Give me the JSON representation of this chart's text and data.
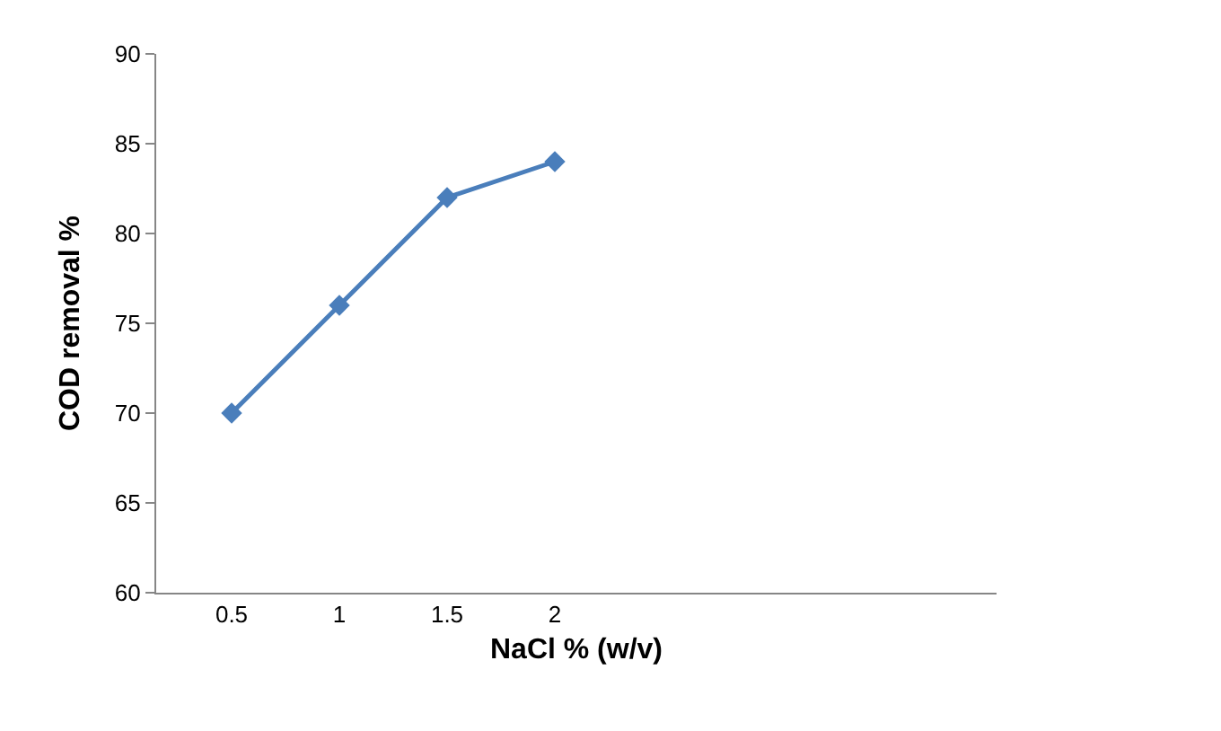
{
  "chart_data": {
    "type": "line",
    "xlabel": "NaCl % (w/v)",
    "ylabel": "COD removal %",
    "categories": [
      "0.5",
      "1",
      "1.5",
      "2"
    ],
    "series": [
      {
        "color": "#4a7ebb",
        "values": [
          70,
          76,
          82,
          84
        ]
      }
    ],
    "ylim": [
      60,
      90
    ],
    "yticks": [
      60,
      65,
      70,
      75,
      80,
      85,
      90
    ],
    "grid": false,
    "marker": "diamond",
    "line_style": "solid"
  }
}
